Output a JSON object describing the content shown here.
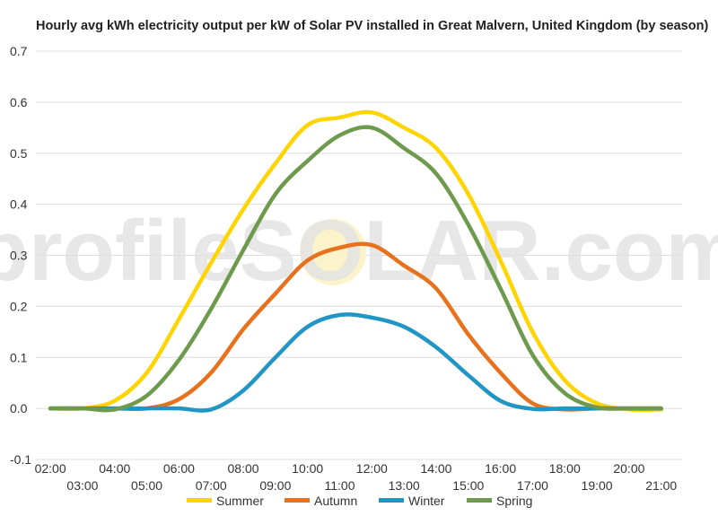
{
  "chart_data": {
    "type": "line",
    "title": "Hourly avg kWh electricity output per kW of Solar PV installed in Great Malvern, United Kingdom (by season)",
    "xlabel": "",
    "ylabel": "",
    "x": [
      2,
      3,
      4,
      5,
      6,
      7,
      8,
      9,
      10,
      11,
      12,
      13,
      14,
      15,
      16,
      17,
      18,
      19,
      20,
      21
    ],
    "x_ticks_top": [
      "02:00",
      "04:00",
      "06:00",
      "08:00",
      "10:00",
      "12:00",
      "14:00",
      "16:00",
      "18:00",
      "20:00"
    ],
    "x_ticks_bottom": [
      "03:00",
      "05:00",
      "07:00",
      "09:00",
      "11:00",
      "13:00",
      "15:00",
      "17:00",
      "19:00",
      "21:00"
    ],
    "ylim": [
      -0.1,
      0.7
    ],
    "y_ticks": [
      "-0.1",
      "0.0",
      "0.1",
      "0.2",
      "0.3",
      "0.4",
      "0.5",
      "0.6",
      "0.7"
    ],
    "grid": true,
    "legend_position": "bottom",
    "watermark": "profileSOLAR.com",
    "series": [
      {
        "name": "Summer",
        "color": "#FFD400",
        "values": [
          0.0,
          0.0,
          0.015,
          0.07,
          0.175,
          0.285,
          0.39,
          0.48,
          0.555,
          0.57,
          0.58,
          0.55,
          0.51,
          0.42,
          0.29,
          0.15,
          0.055,
          0.01,
          -0.002,
          -0.002
        ]
      },
      {
        "name": "Autumn",
        "color": "#E8711E",
        "values": [
          0.0,
          0.0,
          0.0,
          0.0,
          0.018,
          0.07,
          0.155,
          0.225,
          0.29,
          0.315,
          0.32,
          0.28,
          0.235,
          0.145,
          0.07,
          0.01,
          -0.002,
          0.0,
          0.0,
          0.0
        ]
      },
      {
        "name": "Winter",
        "color": "#2196C4",
        "values": [
          0.0,
          0.0,
          0.0,
          0.0,
          0.0,
          -0.002,
          0.035,
          0.1,
          0.16,
          0.183,
          0.178,
          0.16,
          0.12,
          0.065,
          0.015,
          -0.001,
          0.0,
          0.0,
          0.0,
          0.0
        ]
      },
      {
        "name": "Spring",
        "color": "#6E9A4E",
        "values": [
          0.0,
          0.0,
          -0.002,
          0.025,
          0.095,
          0.195,
          0.31,
          0.42,
          0.485,
          0.535,
          0.55,
          0.51,
          0.46,
          0.36,
          0.235,
          0.105,
          0.03,
          0.002,
          0.0,
          0.0
        ]
      }
    ]
  }
}
